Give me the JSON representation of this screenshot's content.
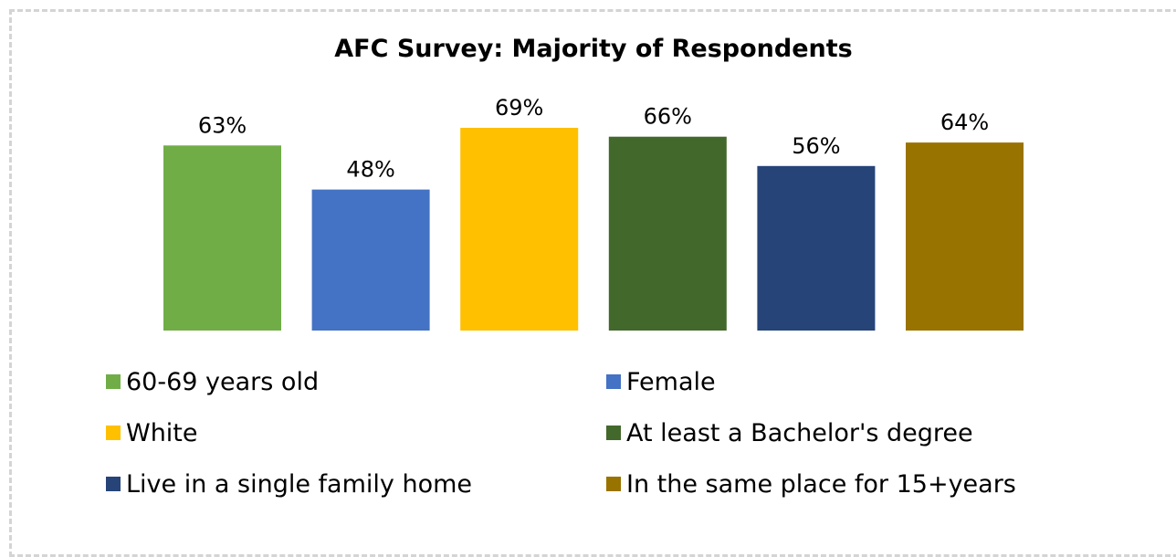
{
  "chart_data": {
    "type": "bar",
    "title": "AFC Survey: Majority of Respondents",
    "categories": [
      "60-69 years old",
      "Female",
      "White",
      "At least a Bachelor's degree",
      "Live in a single family home",
      "In the same place for 15+years"
    ],
    "values": [
      63,
      48,
      69,
      66,
      56,
      64
    ],
    "value_labels": [
      "63%",
      "48%",
      "69%",
      "66%",
      "56%",
      "64%"
    ],
    "colors": [
      "#70ad47",
      "#4472c4",
      "#ffc000",
      "#43682b",
      "#264478",
      "#997300"
    ],
    "value_unit": "%",
    "y_axis_visible": false,
    "grid": false,
    "legend_position": "bottom"
  }
}
